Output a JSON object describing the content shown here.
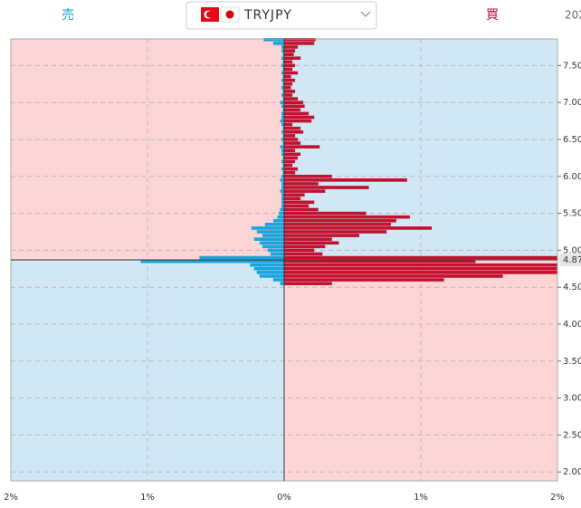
{
  "chart_data": {
    "type": "order-book",
    "sell_label": "売",
    "buy_label": "買",
    "pair": "TRYJPY",
    "date": "202",
    "current_price": 4.87,
    "xlim": [
      -2,
      2
    ],
    "xticks": [
      {
        "value": -2,
        "label": "2%"
      },
      {
        "value": -1,
        "label": "1%"
      },
      {
        "value": 0,
        "label": "0%"
      },
      {
        "value": 1,
        "label": "1%"
      },
      {
        "value": 2,
        "label": "2%"
      }
    ],
    "ylim": [
      1.88,
      7.86
    ],
    "yticks": [
      {
        "value": 2,
        "label": "2.00"
      },
      {
        "value": 2.5,
        "label": "2.50"
      },
      {
        "value": 3,
        "label": "3.00"
      },
      {
        "value": 3.5,
        "label": "3.50"
      },
      {
        "value": 4,
        "label": "4.00"
      },
      {
        "value": 4.5,
        "label": "4.50"
      },
      {
        "value": 5,
        "label": "5.00"
      },
      {
        "value": 5.5,
        "label": "5.50"
      },
      {
        "value": 6,
        "label": "6.00"
      },
      {
        "value": 6.5,
        "label": "6.50"
      },
      {
        "value": 7,
        "label": "7.00"
      },
      {
        "value": 7.5,
        "label": "7.50"
      }
    ],
    "grid": true,
    "prices": [
      4.55,
      4.6,
      4.65,
      4.7,
      4.75,
      4.8,
      4.85,
      4.9,
      4.95,
      5.0,
      5.05,
      5.1,
      5.15,
      5.2,
      5.25,
      5.3,
      5.35,
      5.4,
      5.45,
      5.5,
      5.55,
      5.6,
      5.65,
      5.7,
      5.75,
      5.8,
      5.85,
      5.9,
      5.95,
      6.0,
      6.05,
      6.1,
      6.15,
      6.2,
      6.25,
      6.3,
      6.35,
      6.4,
      6.45,
      6.5,
      6.55,
      6.6,
      6.65,
      6.7,
      6.75,
      6.8,
      6.85,
      6.9,
      6.95,
      7.0,
      7.05,
      7.1,
      7.15,
      7.2,
      7.25,
      7.3,
      7.35,
      7.4,
      7.45,
      7.5,
      7.55,
      7.6,
      7.65,
      7.7,
      7.75,
      7.8,
      7.85
    ],
    "series": [
      {
        "color": "#1aa3dc",
        "side": "sell",
        "values": [
          0.03,
          0.08,
          0.18,
          0.2,
          0.22,
          0.25,
          1.05,
          0.62,
          0.1,
          0.12,
          0.16,
          0.18,
          0.22,
          0.16,
          0.2,
          0.24,
          0.14,
          0.08,
          0.05,
          0.04,
          0.03,
          0.02,
          0.02,
          0.02,
          0.02,
          0.03,
          0.02,
          0.02,
          0.03,
          0.02,
          0.01,
          0.02,
          0.01,
          0.02,
          0.01,
          0.02,
          0.02,
          0.03,
          0.01,
          0.02,
          0.01,
          0.02,
          0.01,
          0.02,
          0.03,
          0.02,
          0.02,
          0.01,
          0.02,
          0.03,
          0.01,
          0.02,
          0.01,
          0.02,
          0.01,
          0.02,
          0.01,
          0.02,
          0.01,
          0.02,
          0.01,
          0.02,
          0.01,
          0.02,
          0.02,
          0.08,
          0.15
        ]
      },
      {
        "color": "#c2102f",
        "side": "buy",
        "values": [
          0.35,
          1.17,
          1.6,
          2.0,
          2.0,
          2.0,
          1.4,
          2.0,
          0.28,
          0.22,
          0.3,
          0.4,
          0.35,
          0.55,
          0.75,
          1.08,
          0.78,
          0.82,
          0.92,
          0.6,
          0.25,
          0.18,
          0.22,
          0.12,
          0.15,
          0.3,
          0.62,
          0.25,
          0.9,
          0.35,
          0.08,
          0.1,
          0.06,
          0.08,
          0.1,
          0.12,
          0.08,
          0.26,
          0.12,
          0.1,
          0.08,
          0.14,
          0.12,
          0.06,
          0.2,
          0.22,
          0.18,
          0.12,
          0.15,
          0.14,
          0.1,
          0.06,
          0.08,
          0.05,
          0.06,
          0.08,
          0.05,
          0.1,
          0.06,
          0.08,
          0.06,
          0.12,
          0.07,
          0.08,
          0.1,
          0.22,
          0.23
        ]
      }
    ]
  }
}
